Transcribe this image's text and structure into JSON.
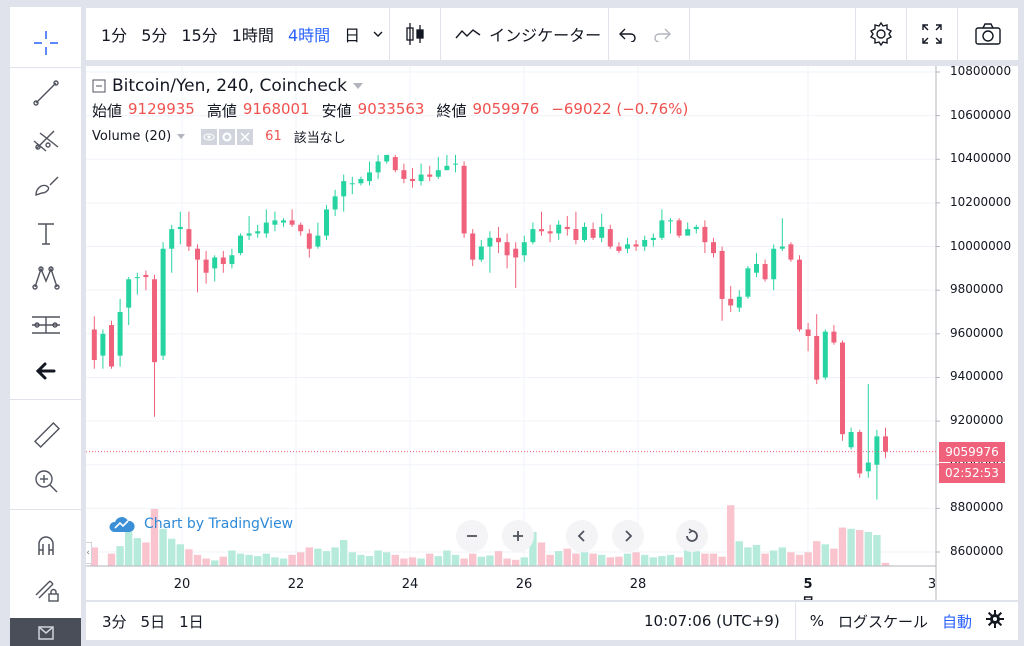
{
  "top_toolbar": {
    "intervals": [
      {
        "label": "1分",
        "active": false
      },
      {
        "label": "5分",
        "active": false
      },
      {
        "label": "15分",
        "active": false
      },
      {
        "label": "1時間",
        "active": false
      },
      {
        "label": "4時間",
        "active": true
      },
      {
        "label": "日",
        "active": false
      }
    ],
    "indicators_label": "インジケーター"
  },
  "legend": {
    "symbol": "Bitcoin/Yen, 240, Coincheck",
    "open_label": "始値",
    "open": "9129935",
    "high_label": "高値",
    "high": "9168001",
    "low_label": "安値",
    "low": "9033563",
    "close_label": "終値",
    "close": "9059976",
    "change": "−69022 (−0.76%)",
    "volume_label": "Volume (20)",
    "volume_value": "61",
    "volume_na": "該当なし"
  },
  "price_axis": {
    "ticks": [
      "10800000",
      "10600000",
      "10400000",
      "10200000",
      "10000000",
      "9800000",
      "9600000",
      "9400000",
      "9200000",
      "9000000",
      "8800000",
      "8600000"
    ],
    "last_price": "9059976",
    "countdown": "02:52:53"
  },
  "time_axis": {
    "ticks": [
      "20",
      "22",
      "24",
      "26",
      "28",
      "5月",
      "3"
    ]
  },
  "watermark": "Chart by TradingView",
  "bottom_toolbar": {
    "ranges": [
      "3分",
      "5日",
      "1日"
    ],
    "clock": "10:07:06 (UTC+9)",
    "percent": "%",
    "log_scale": "ログスケール",
    "auto": "自動"
  },
  "colors": {
    "up": "#26d4a1",
    "down": "#f0627c",
    "accent": "#2962ff"
  },
  "chart_data": {
    "type": "candlestick",
    "ylim": [
      8500000,
      10850000
    ],
    "candles": [
      [
        9620000,
        9480000,
        9680000,
        9440000
      ],
      [
        9500000,
        9600000,
        9620000,
        9440000
      ],
      [
        9640000,
        9450000,
        9660000,
        9440000
      ],
      [
        9500000,
        9700000,
        9760000,
        9450000
      ],
      [
        9720000,
        9850000,
        9860000,
        9640000
      ],
      [
        9860000,
        9860000,
        9880000,
        9780000
      ],
      [
        9870000,
        9860000,
        9890000,
        9800000
      ],
      [
        9850000,
        9470000,
        9870000,
        9220000
      ],
      [
        9500000,
        9990000,
        10020000,
        9480000
      ],
      [
        9990000,
        10080000,
        10100000,
        9880000
      ],
      [
        10080000,
        10090000,
        10160000,
        10010000
      ],
      [
        10080000,
        10000000,
        10160000,
        9980000
      ],
      [
        9990000,
        9940000,
        10010000,
        9790000
      ],
      [
        9940000,
        9880000,
        9980000,
        9830000
      ],
      [
        9900000,
        9950000,
        9960000,
        9840000
      ],
      [
        9950000,
        9920000,
        9980000,
        9880000
      ],
      [
        9920000,
        9960000,
        9990000,
        9900000
      ],
      [
        9970000,
        10050000,
        10060000,
        9960000
      ],
      [
        10050000,
        10060000,
        10140000,
        10030000
      ],
      [
        10060000,
        10070000,
        10100000,
        10040000
      ],
      [
        10060000,
        10110000,
        10170000,
        10040000
      ],
      [
        10100000,
        10120000,
        10160000,
        10070000
      ],
      [
        10110000,
        10120000,
        10130000,
        10090000
      ],
      [
        10120000,
        10100000,
        10170000,
        10090000
      ],
      [
        10100000,
        10070000,
        10110000,
        10050000
      ],
      [
        10060000,
        9990000,
        10080000,
        9950000
      ],
      [
        10000000,
        10050000,
        10110000,
        9990000
      ],
      [
        10050000,
        10170000,
        10190000,
        10030000
      ],
      [
        10170000,
        10230000,
        10260000,
        10140000
      ],
      [
        10230000,
        10300000,
        10330000,
        10160000
      ],
      [
        10290000,
        10290000,
        10320000,
        10240000
      ],
      [
        10290000,
        10310000,
        10320000,
        10280000
      ],
      [
        10300000,
        10340000,
        10390000,
        10280000
      ],
      [
        10340000,
        10390000,
        10420000,
        10310000
      ],
      [
        10390000,
        10420000,
        10420000,
        10380000
      ],
      [
        10410000,
        10350000,
        10420000,
        10340000
      ],
      [
        10350000,
        10310000,
        10380000,
        10290000
      ],
      [
        10310000,
        10300000,
        10360000,
        10270000
      ],
      [
        10300000,
        10330000,
        10380000,
        10280000
      ],
      [
        10330000,
        10320000,
        10370000,
        10300000
      ],
      [
        10320000,
        10350000,
        10410000,
        10310000
      ],
      [
        10350000,
        10370000,
        10420000,
        10350000
      ],
      [
        10380000,
        10380000,
        10420000,
        10340000
      ],
      [
        10370000,
        10060000,
        10390000,
        10040000
      ],
      [
        10060000,
        9940000,
        10080000,
        9910000
      ],
      [
        9940000,
        10000000,
        10030000,
        9930000
      ],
      [
        10000000,
        10040000,
        10070000,
        9880000
      ],
      [
        10040000,
        10020000,
        10090000,
        9970000
      ],
      [
        10020000,
        9960000,
        10060000,
        9900000
      ],
      [
        9990000,
        9950000,
        10020000,
        9810000
      ],
      [
        9960000,
        10020000,
        10050000,
        9930000
      ],
      [
        10020000,
        10080000,
        10110000,
        10010000
      ],
      [
        10080000,
        10070000,
        10160000,
        10050000
      ],
      [
        10070000,
        10060000,
        10100000,
        10020000
      ],
      [
        10060000,
        10100000,
        10120000,
        10030000
      ],
      [
        10090000,
        10080000,
        10140000,
        10050000
      ],
      [
        10080000,
        10030000,
        10160000,
        10010000
      ],
      [
        10030000,
        10090000,
        10110000,
        10020000
      ],
      [
        10080000,
        10040000,
        10110000,
        10030000
      ],
      [
        10040000,
        10090000,
        10150000,
        10020000
      ],
      [
        10080000,
        10000000,
        10100000,
        9990000
      ],
      [
        10000000,
        9980000,
        10020000,
        9970000
      ],
      [
        9990000,
        10010000,
        10040000,
        9970000
      ],
      [
        10010000,
        10000000,
        10030000,
        9980000
      ],
      [
        10000000,
        10030000,
        10050000,
        9980000
      ],
      [
        10030000,
        10040000,
        10060000,
        10000000
      ],
      [
        10040000,
        10120000,
        10170000,
        10030000
      ],
      [
        10120000,
        10120000,
        10130000,
        10060000
      ],
      [
        10120000,
        10050000,
        10130000,
        10040000
      ],
      [
        10050000,
        10080000,
        10110000,
        10050000
      ],
      [
        10080000,
        10090000,
        10100000,
        10060000
      ],
      [
        10090000,
        10020000,
        10120000,
        9970000
      ],
      [
        10020000,
        9970000,
        10040000,
        9950000
      ],
      [
        9980000,
        9760000,
        10000000,
        9660000
      ],
      [
        9760000,
        9730000,
        9820000,
        9700000
      ],
      [
        9720000,
        9770000,
        9800000,
        9700000
      ],
      [
        9770000,
        9900000,
        9910000,
        9760000
      ],
      [
        9880000,
        9920000,
        9970000,
        9860000
      ],
      [
        9920000,
        9850000,
        9940000,
        9840000
      ],
      [
        9850000,
        9990000,
        10010000,
        9800000
      ],
      [
        9990000,
        10000000,
        10130000,
        9980000
      ],
      [
        10010000,
        9940000,
        10020000,
        9930000
      ],
      [
        9940000,
        9620000,
        9960000,
        9610000
      ],
      [
        9620000,
        9590000,
        9650000,
        9520000
      ],
      [
        9590000,
        9390000,
        9690000,
        9370000
      ],
      [
        9400000,
        9610000,
        9620000,
        9390000
      ],
      [
        9610000,
        9560000,
        9640000,
        9550000
      ],
      [
        9560000,
        9140000,
        9570000,
        9110000
      ],
      [
        9080000,
        9150000,
        9170000,
        9070000
      ],
      [
        9150000,
        8960000,
        9160000,
        8940000
      ],
      [
        8970000,
        9010000,
        9370000,
        8940000
      ],
      [
        9000000,
        9130000,
        9160000,
        8840000
      ],
      [
        9130000,
        9060000,
        9170000,
        9030000
      ]
    ],
    "volume": [
      30,
      0,
      20,
      32,
      55,
      45,
      38,
      92,
      60,
      44,
      35,
      27,
      18,
      12,
      9,
      15,
      25,
      20,
      18,
      16,
      20,
      14,
      12,
      18,
      22,
      30,
      28,
      24,
      30,
      42,
      22,
      18,
      16,
      25,
      22,
      18,
      12,
      14,
      12,
      20,
      16,
      25,
      18,
      12,
      20,
      15,
      17,
      24,
      12,
      10,
      14,
      55,
      38,
      18,
      24,
      28,
      20,
      22,
      20,
      18,
      14,
      15,
      20,
      22,
      18,
      14,
      16,
      18,
      14,
      30,
      24,
      20,
      20,
      15,
      98,
      40,
      30,
      34,
      20,
      25,
      30,
      22,
      18,
      22,
      40,
      35,
      28,
      62,
      60,
      58,
      55,
      50,
      5
    ]
  }
}
